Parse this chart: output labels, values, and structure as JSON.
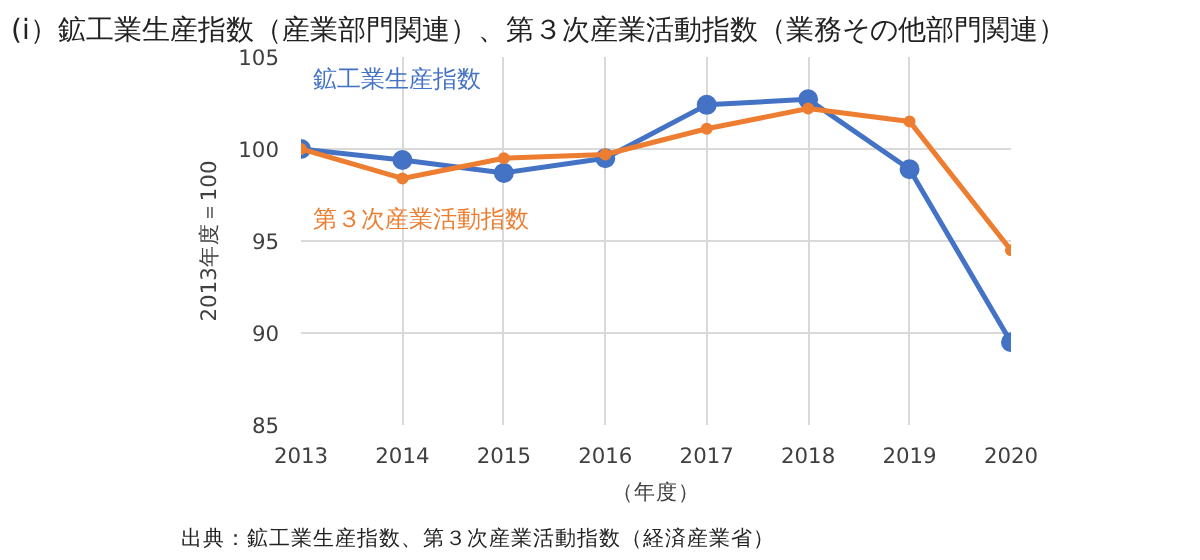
{
  "chart_data": {
    "type": "line",
    "title": "(i）鉱工業生産指数（産業部門関連）、第３次産業活動指数（業務その他部門関連）",
    "xlabel": "（年度）",
    "ylabel": "2013年度＝100",
    "categories": [
      "2013",
      "2014",
      "2015",
      "2016",
      "2017",
      "2018",
      "2019",
      "2020"
    ],
    "series": [
      {
        "name": "鉱工業生産指数",
        "color": "#4472c4",
        "values": [
          100,
          99.4,
          98.7,
          99.5,
          102.4,
          102.7,
          98.9,
          89.5
        ]
      },
      {
        "name": "第３次産業活動指数",
        "color": "#ed7d31",
        "values": [
          100,
          98.4,
          99.5,
          99.7,
          101.1,
          102.2,
          101.5,
          94.5
        ]
      }
    ],
    "ylim": [
      85,
      105
    ],
    "yticks": [
      85,
      90,
      95,
      100,
      105
    ],
    "grid": true,
    "marker": "circle",
    "line_style": "solid",
    "annotations": [
      "出典：鉱工業生産指数、第３次産業活動指数（経済産業省）"
    ]
  }
}
